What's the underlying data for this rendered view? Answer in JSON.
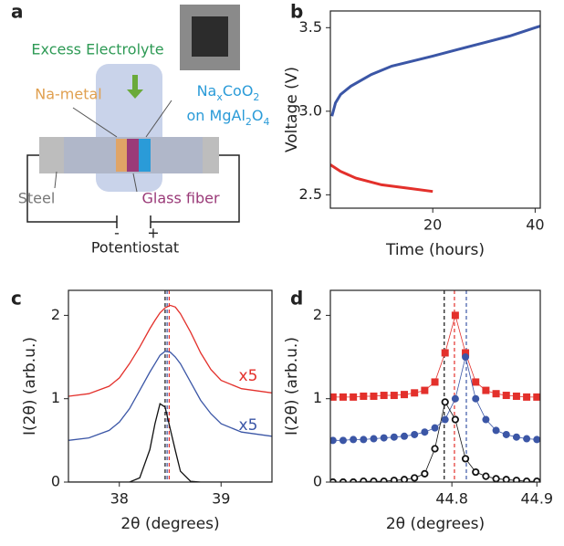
{
  "diagram": {
    "panel_label": "a",
    "electrolyte_label": "Excess Electrolyte",
    "anode_label": "Na-metal",
    "cathode_label_parts": [
      "Na",
      "x",
      "CoO",
      "2"
    ],
    "cathode_substrate_parts": [
      "on MgAl",
      "2",
      "O",
      "4"
    ],
    "steel_label": "Steel",
    "separator_label": "Glass fiber",
    "minus_label": "-",
    "plus_label": "+",
    "device_label": "Potentiostat"
  },
  "chart_data": [
    {
      "type": "line",
      "panel_label": "b",
      "xlabel": "Time (hours)",
      "ylabel": "Voltage (V)",
      "xlim": [
        0,
        41
      ],
      "xticks": [
        20,
        40
      ],
      "ylim": [
        2.42,
        3.6
      ],
      "yticks": [
        2.5,
        {
          "value": 3,
          "label": "3.0"
        },
        3.5
      ],
      "series": [
        {
          "color": "#3b56a6",
          "width": 3,
          "x": [
            0.3,
            1,
            2,
            4,
            8,
            12,
            16,
            20,
            25,
            30,
            35,
            40,
            41
          ],
          "values": [
            2.97,
            3.05,
            3.1,
            3.15,
            3.22,
            3.27,
            3.3,
            3.33,
            3.37,
            3.41,
            3.45,
            3.5,
            3.51
          ]
        },
        {
          "color": "#e3302b",
          "width": 3,
          "x": [
            0,
            2,
            5,
            10,
            15,
            20
          ],
          "values": [
            2.68,
            2.64,
            2.6,
            2.56,
            2.54,
            2.52
          ]
        }
      ]
    },
    {
      "type": "line",
      "panel_label": "c",
      "xlabel": "2θ (degrees)",
      "ylabel": "I(2θ) (arb.u.)",
      "xlim": [
        37.5,
        39.5
      ],
      "xticks": [
        38,
        39
      ],
      "ylim": [
        0,
        2.3
      ],
      "yticks": [
        0,
        1,
        2
      ],
      "x": [
        37.5,
        37.7,
        37.9,
        38.0,
        38.1,
        38.2,
        38.3,
        38.35,
        38.4,
        38.45,
        38.5,
        38.55,
        38.6,
        38.7,
        38.8,
        38.9,
        39.0,
        39.2,
        39.5
      ],
      "series": [
        {
          "color": "#111111",
          "width": 1.3,
          "values": [
            0,
            0,
            0,
            0,
            0,
            0.05,
            0.39,
            0.7,
            0.94,
            0.9,
            0.64,
            0.38,
            0.13,
            0.01,
            0,
            0,
            0,
            0,
            0
          ]
        },
        {
          "color": "#3b56a6",
          "width": 1.3,
          "values": [
            0.5,
            0.53,
            0.62,
            0.72,
            0.88,
            1.1,
            1.32,
            1.42,
            1.52,
            1.57,
            1.56,
            1.5,
            1.42,
            1.2,
            0.98,
            0.82,
            0.7,
            0.6,
            0.55
          ]
        },
        {
          "color": "#e3302b",
          "width": 1.3,
          "values": [
            1.03,
            1.06,
            1.15,
            1.25,
            1.42,
            1.62,
            1.84,
            1.94,
            2.03,
            2.09,
            2.12,
            2.1,
            2.02,
            1.8,
            1.55,
            1.35,
            1.22,
            1.12,
            1.07
          ]
        }
      ],
      "reference_lines": [
        {
          "x": 38.45,
          "color": "#111111"
        },
        {
          "x": 38.47,
          "color": "#3b56a6"
        },
        {
          "x": 38.49,
          "color": "#e3302b"
        }
      ],
      "annotations": [
        {
          "text": "x5",
          "color": "#e3302b"
        },
        {
          "text": "x5",
          "color": "#3b56a6"
        }
      ]
    },
    {
      "type": "line",
      "panel_label": "d",
      "xlabel": "2θ (degrees)",
      "ylabel": "I(2θ) (arb.u.)",
      "xlim": [
        44.657,
        44.904
      ],
      "xticks": [
        44.8,
        44.9
      ],
      "ylim": [
        0,
        2.3
      ],
      "yticks": [
        0,
        1,
        2
      ],
      "x": [
        44.66,
        44.672,
        44.684,
        44.696,
        44.708,
        44.72,
        44.732,
        44.744,
        44.756,
        44.768,
        44.78,
        44.792,
        44.804,
        44.816,
        44.828,
        44.84,
        44.852,
        44.864,
        44.876,
        44.888,
        44.9
      ],
      "series": [
        {
          "color": "#e3302b",
          "width": 0.8,
          "marker": "square",
          "values": [
            1.02,
            1.02,
            1.02,
            1.03,
            1.03,
            1.04,
            1.04,
            1.05,
            1.07,
            1.1,
            1.2,
            1.55,
            2.0,
            1.55,
            1.2,
            1.1,
            1.06,
            1.04,
            1.03,
            1.02,
            1.02
          ]
        },
        {
          "color": "#3b56a6",
          "width": 0.8,
          "marker": "circle",
          "values": [
            0.5,
            0.5,
            0.51,
            0.51,
            0.52,
            0.53,
            0.54,
            0.55,
            0.57,
            0.6,
            0.65,
            0.75,
            1.0,
            1.5,
            1.0,
            0.75,
            0.62,
            0.57,
            0.54,
            0.52,
            0.51
          ]
        },
        {
          "color": "#111111",
          "width": 0.8,
          "marker": "open-circle",
          "values": [
            0,
            0,
            0,
            0.01,
            0.01,
            0.01,
            0.02,
            0.03,
            0.05,
            0.1,
            0.4,
            0.96,
            0.75,
            0.28,
            0.12,
            0.07,
            0.04,
            0.03,
            0.02,
            0.01,
            0.01
          ]
        }
      ],
      "reference_lines": [
        {
          "x": 44.791,
          "color": "#111111"
        },
        {
          "x": 44.803,
          "color": "#e3302b"
        },
        {
          "x": 44.817,
          "color": "#3b56a6"
        }
      ]
    }
  ]
}
